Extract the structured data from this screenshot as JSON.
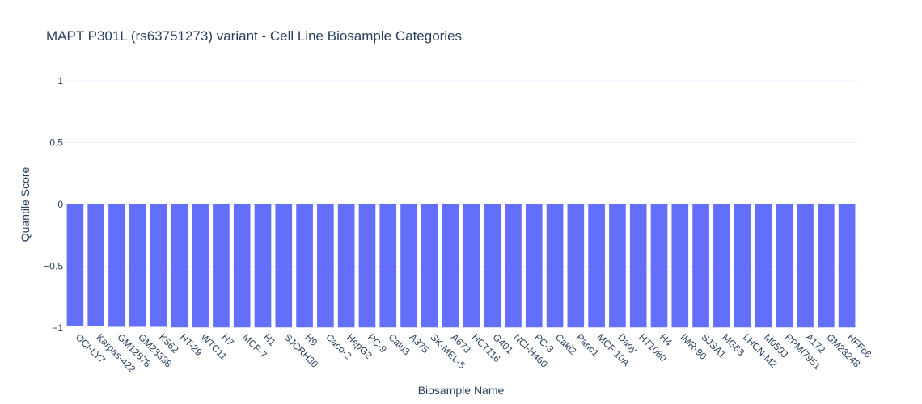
{
  "chart_data": {
    "type": "bar",
    "title": "MAPT P301L (rs63751273) variant - Cell Line Biosample Categories",
    "xlabel": "Biosample Name",
    "ylabel": "Quantile Score",
    "ylim": [
      -1,
      1
    ],
    "yticks": [
      {
        "value": 1,
        "label": "1"
      },
      {
        "value": 0.5,
        "label": "0.5"
      },
      {
        "value": 0,
        "label": "0"
      },
      {
        "value": -0.5,
        "label": "−0.5"
      },
      {
        "value": -1,
        "label": "−1"
      }
    ],
    "grid": true,
    "bar_color": "#636efa",
    "categories": [
      "OCI-LY7",
      "Karpas-422",
      "GM12878",
      "GM23338",
      "K562",
      "HT-29",
      "WTC11",
      "H7",
      "MCF-7",
      "H1",
      "SJCRH30",
      "H9",
      "Caco-2",
      "HepG2",
      "PC-9",
      "Calu3",
      "A375",
      "SK-MEL-5",
      "A673",
      "HCT116",
      "G401",
      "NCI-H460",
      "PC-3",
      "Caki2",
      "Panc1",
      "MCF 10A",
      "Daoy",
      "HT1080",
      "H4",
      "IMR-90",
      "SJSA1",
      "MG63",
      "LHCN-M2",
      "M059J",
      "RPMI7951",
      "A172",
      "GM23248",
      "HFFc6"
    ],
    "values": [
      -0.98,
      -0.985,
      -0.99,
      -0.99,
      -0.99,
      -0.995,
      -0.995,
      -0.995,
      -0.995,
      -0.995,
      -0.995,
      -0.995,
      -0.995,
      -0.995,
      -0.995,
      -0.995,
      -0.995,
      -0.995,
      -0.995,
      -0.995,
      -0.995,
      -0.995,
      -0.995,
      -0.995,
      -0.995,
      -0.995,
      -0.995,
      -0.995,
      -0.995,
      -0.995,
      -0.995,
      -0.995,
      -0.995,
      -0.995,
      -0.995,
      -0.995,
      -0.995,
      -0.995
    ]
  }
}
